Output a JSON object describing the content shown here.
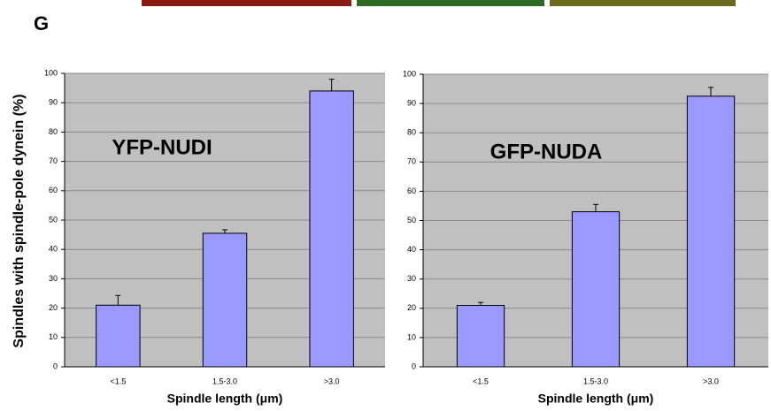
{
  "panel_label": "G",
  "ylabel": "Spindles with spindle-pole dynein (%)",
  "chart_data": [
    {
      "type": "bar",
      "annotation": "YFP-NUDI",
      "xlabel": "Spindle length (μm)",
      "categories": [
        "<1.5",
        "1.5-3.0",
        ">3.0"
      ],
      "values": [
        21,
        45.5,
        94
      ],
      "errors": [
        3.3,
        1.2,
        4
      ],
      "color": "#9999ff",
      "ylim": [
        0,
        100
      ],
      "yticks": [
        0,
        10,
        20,
        30,
        40,
        50,
        60,
        70,
        80,
        90,
        100
      ],
      "grid": true
    },
    {
      "type": "bar",
      "annotation": "GFP-NUDA",
      "xlabel": "Spindle length (μm)",
      "categories": [
        "<1.5",
        "1.5-3.0",
        ">3.0"
      ],
      "values": [
        21,
        53,
        92.5
      ],
      "errors": [
        1,
        2.5,
        3
      ],
      "color": "#9999ff",
      "ylim": [
        0,
        100
      ],
      "yticks": [
        0,
        10,
        20,
        30,
        40,
        50,
        60,
        70,
        80,
        90,
        100
      ],
      "grid": true
    }
  ]
}
